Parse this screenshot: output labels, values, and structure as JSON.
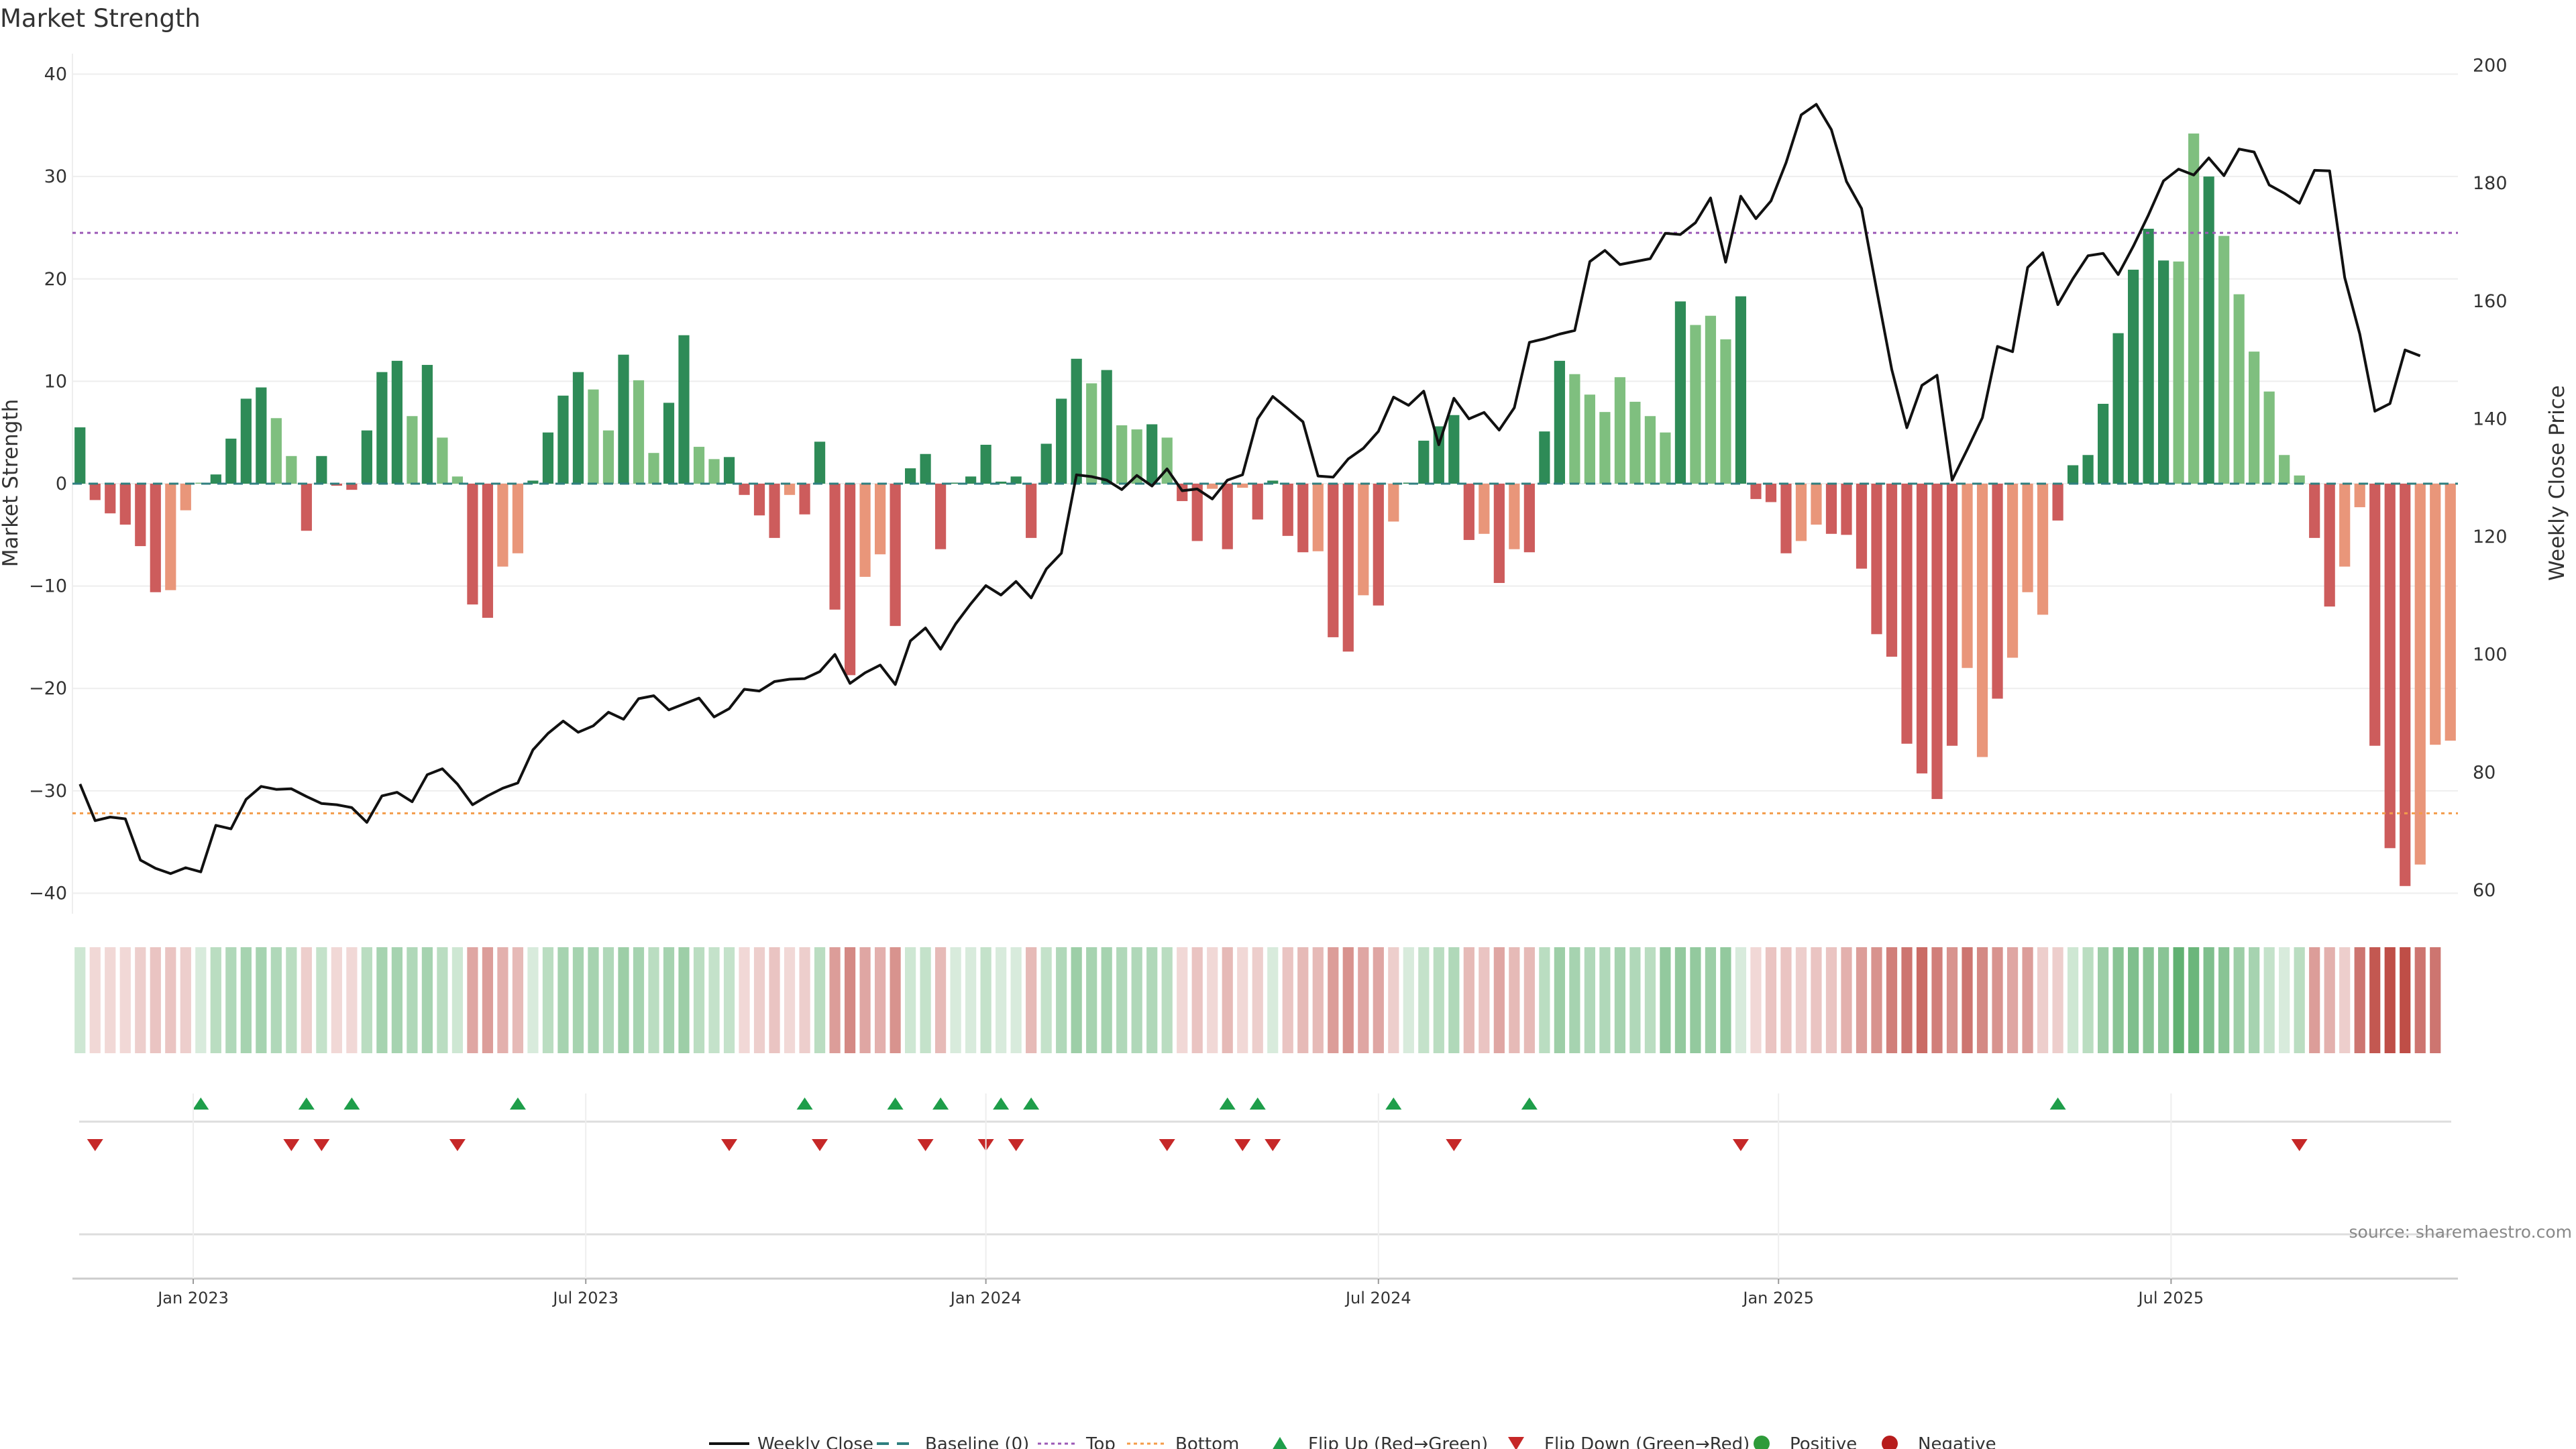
{
  "title": "Market Strength",
  "source": "source: sharemaestro.com",
  "colors": {
    "strong_green": "#2e8b57",
    "light_green": "#7fbf7f",
    "strong_red": "#cd5c5c",
    "light_red": "#e9967a",
    "price_line": "#111111",
    "baseline": "#2f7f7f",
    "top": "#9b59b6",
    "bottom": "#f39c4a",
    "flip_up": "#1e9e4a",
    "flip_down": "#c62828",
    "grid": "#eeeeee"
  },
  "legend": [
    {
      "key": "line",
      "label": "Weekly Close"
    },
    {
      "key": "dash",
      "label": "Baseline (0)"
    },
    {
      "key": "top",
      "label": "Top"
    },
    {
      "key": "bottom",
      "label": "Bottom"
    },
    {
      "key": "up",
      "label": "Flip Up (Red→Green)"
    },
    {
      "key": "down",
      "label": "Flip Down (Green→Red)"
    },
    {
      "key": "pos",
      "label": "Positive"
    },
    {
      "key": "neg",
      "label": "Negative"
    }
  ],
  "chart_data": {
    "type": "bar",
    "title": "Market Strength",
    "ylabel": "Market Strength",
    "y2label": "Weekly Close Price",
    "ylim": [
      -42,
      42
    ],
    "y2lim": [
      56,
      202
    ],
    "yticks": [
      40,
      30,
      20,
      10,
      0,
      -10,
      -20,
      -30,
      -40
    ],
    "y2ticks": [
      200,
      180,
      160,
      140,
      120,
      100,
      80,
      60
    ],
    "xticks": [
      "Jan 2023",
      "Jul 2023",
      "Jan 2024",
      "Jul 2024",
      "Jan 2025",
      "Jul 2025"
    ],
    "top_line": 24.5,
    "bottom_line": -32.2,
    "baseline": 0,
    "weeks": 158,
    "tick_week_index": [
      8,
      34,
      60.5,
      86.5,
      113,
      139
    ],
    "strength": [
      5.5,
      -1.6,
      -2.9,
      -4,
      -6.1,
      -10.6,
      -10.4,
      -2.6,
      0.1,
      0.9,
      4.4,
      8.3,
      9.4,
      6.4,
      2.7,
      -4.6,
      2.7,
      -0.2,
      -0.6,
      5.2,
      10.9,
      12,
      6.6,
      11.6,
      4.5,
      0.7,
      -11.8,
      -13.1,
      -8.1,
      -6.8,
      0.3,
      5,
      8.6,
      10.9,
      9.2,
      5.2,
      12.6,
      10.1,
      3,
      7.9,
      14.5,
      3.6,
      2.4,
      2.6,
      -1.1,
      -3.1,
      -5.3,
      -1.1,
      -3,
      4.1,
      -12.3,
      -18.7,
      -9.1,
      -6.9,
      -13.9,
      1.5,
      2.9,
      -6.4,
      0.1,
      0.7,
      3.8,
      0.2,
      0.7,
      -5.3,
      3.9,
      8.3,
      12.2,
      9.8,
      11.1,
      5.7,
      5.3,
      5.8,
      4.5,
      -1.7,
      -5.6,
      -0.5,
      -6.4,
      -0.4,
      -3.5,
      0.3,
      -5.1,
      -6.7,
      -6.6,
      -15,
      -16.4,
      -10.9,
      -11.9,
      -3.7,
      0.1,
      4.2,
      5.6,
      6.7,
      -5.5,
      -4.9,
      -9.7,
      -6.4,
      -6.7,
      5.1,
      12,
      10.7,
      8.7,
      7,
      10.4,
      8,
      6.6,
      5,
      17.8,
      15.5,
      16.4,
      14.1,
      18.3,
      -1.5,
      -1.8,
      -6.8,
      -5.6,
      -4,
      -4.9,
      -5,
      -8.3,
      -14.7,
      -16.9,
      -25.4,
      -28.3,
      -30.8,
      -25.6,
      -18,
      -26.7,
      -21,
      -17,
      -10.6,
      -12.8,
      -3.6,
      1.8,
      2.8,
      7.8,
      14.7,
      20.9,
      24.9,
      21.8,
      21.7,
      34.2,
      30,
      24.2,
      18.5,
      12.9,
      9,
      2.8,
      0.8,
      -5.3,
      -12,
      -8.1,
      -2.3,
      -25.6,
      -35.6,
      -39.3,
      -37.2,
      -25.5,
      -25.1
    ],
    "strength_shade": [
      "s",
      "s",
      "s",
      "s",
      "s",
      "s",
      "l",
      "l",
      "l",
      "s",
      "s",
      "s",
      "s",
      "l",
      "l",
      "s",
      "s",
      "s",
      "s",
      "s",
      "s",
      "s",
      "l",
      "s",
      "l",
      "l",
      "s",
      "s",
      "l",
      "l",
      "s",
      "s",
      "s",
      "s",
      "l",
      "l",
      "s",
      "l",
      "l",
      "s",
      "s",
      "l",
      "l",
      "s",
      "s",
      "s",
      "s",
      "l",
      "s",
      "s",
      "s",
      "s",
      "l",
      "l",
      "s",
      "s",
      "s",
      "s",
      "s",
      "s",
      "s",
      "s",
      "s",
      "s",
      "s",
      "s",
      "s",
      "l",
      "s",
      "l",
      "l",
      "s",
      "l",
      "s",
      "s",
      "l",
      "s",
      "l",
      "s",
      "s",
      "s",
      "s",
      "l",
      "s",
      "s",
      "l",
      "s",
      "l",
      "s",
      "s",
      "s",
      "s",
      "s",
      "l",
      "s",
      "l",
      "s",
      "s",
      "s",
      "l",
      "l",
      "l",
      "l",
      "l",
      "l",
      "l",
      "s",
      "l",
      "l",
      "l",
      "s",
      "s",
      "s",
      "s",
      "l",
      "l",
      "s",
      "s",
      "s",
      "s",
      "s",
      "s",
      "s",
      "s",
      "s",
      "l",
      "l",
      "s",
      "l",
      "l",
      "l",
      "s",
      "s",
      "s",
      "s",
      "s",
      "s",
      "s",
      "s",
      "l",
      "l",
      "s",
      "l",
      "l",
      "l",
      "l",
      "l",
      "l",
      "s",
      "s",
      "l",
      "l",
      "s",
      "s",
      "s",
      "l",
      "l",
      "l"
    ],
    "weekly_close": [
      78,
      71.8,
      72.4,
      72.1,
      65.1,
      63.7,
      62.8,
      63.8,
      63.1,
      71,
      70.4,
      75.4,
      77.6,
      77.1,
      77.2,
      75.9,
      74.7,
      74.5,
      74,
      71.5,
      76,
      76.6,
      75,
      79.6,
      80.6,
      78,
      74.5,
      76,
      77.3,
      78.2,
      83.8,
      86.6,
      88.7,
      86.8,
      87.9,
      90.2,
      89,
      92.5,
      93,
      90.6,
      91.6,
      92.6,
      89.4,
      90.8,
      94.1,
      93.8,
      95.4,
      95.8,
      95.9,
      97.1,
      100,
      95.1,
      96.9,
      98.2,
      94.9,
      102.3,
      104.5,
      100.9,
      105.2,
      108.6,
      111.7,
      110.1,
      112.4,
      109.6,
      114.5,
      117.2,
      130.5,
      130.2,
      129.6,
      128,
      130.4,
      128.6,
      131.5,
      127.8,
      128.1,
      126.4,
      129.6,
      130.5,
      140,
      143.8,
      141.7,
      139.5,
      130.3,
      130.1,
      133.2,
      135,
      137.9,
      143.7,
      142.3,
      144.7,
      135.6,
      143.5,
      140,
      141.1,
      138.1,
      141.9,
      153,
      153.6,
      154.4,
      155,
      166.7,
      168.6,
      166.2,
      166.7,
      167.2,
      171.5,
      171.3,
      173.3,
      177.5,
      166.6,
      177.8,
      174,
      177,
      183.5,
      191.6,
      193.4,
      189.1,
      180.3,
      175.7,
      161.9,
      148.4,
      138.5,
      145.7,
      147.4,
      129.6,
      134.8,
      140.2,
      152.3,
      151.4,
      165.7,
      168.2,
      159.4,
      163.8,
      167.7,
      168.1,
      164.5,
      169.3,
      174.6,
      180.4,
      182.4,
      181.4,
      184.3,
      181.3,
      185.8,
      185.3,
      179.7,
      178.3,
      176.6,
      182.2,
      182.1,
      164,
      154.4,
      141.3,
      142.6,
      151.7,
      150.7
    ],
    "heat_intensity": [
      0.25,
      0.2,
      0.2,
      0.2,
      0.25,
      0.3,
      0.3,
      0.25,
      0.2,
      0.35,
      0.4,
      0.45,
      0.45,
      0.4,
      0.35,
      0.25,
      0.3,
      0.2,
      0.2,
      0.35,
      0.45,
      0.45,
      0.4,
      0.45,
      0.35,
      0.25,
      0.45,
      0.5,
      0.4,
      0.35,
      0.2,
      0.35,
      0.45,
      0.45,
      0.45,
      0.4,
      0.5,
      0.45,
      0.35,
      0.45,
      0.5,
      0.35,
      0.3,
      0.3,
      0.2,
      0.25,
      0.3,
      0.2,
      0.25,
      0.35,
      0.5,
      0.6,
      0.45,
      0.4,
      0.55,
      0.25,
      0.3,
      0.35,
      0.2,
      0.2,
      0.3,
      0.2,
      0.2,
      0.35,
      0.3,
      0.4,
      0.5,
      0.45,
      0.45,
      0.4,
      0.4,
      0.4,
      0.35,
      0.2,
      0.3,
      0.2,
      0.35,
      0.2,
      0.25,
      0.2,
      0.3,
      0.35,
      0.35,
      0.5,
      0.55,
      0.45,
      0.45,
      0.25,
      0.2,
      0.3,
      0.35,
      0.4,
      0.35,
      0.3,
      0.45,
      0.35,
      0.35,
      0.35,
      0.5,
      0.45,
      0.4,
      0.4,
      0.45,
      0.4,
      0.35,
      0.55,
      0.55,
      0.55,
      0.5,
      0.55,
      0.2,
      0.2,
      0.3,
      0.3,
      0.25,
      0.3,
      0.3,
      0.4,
      0.5,
      0.55,
      0.65,
      0.7,
      0.75,
      0.65,
      0.55,
      0.7,
      0.6,
      0.55,
      0.45,
      0.5,
      0.25,
      0.25,
      0.25,
      0.35,
      0.5,
      0.6,
      0.65,
      0.6,
      0.6,
      0.8,
      0.75,
      0.65,
      0.6,
      0.5,
      0.45,
      0.3,
      0.2,
      0.35,
      0.5,
      0.4,
      0.25,
      0.7,
      0.85,
      0.9,
      0.9,
      0.7,
      0.7
    ],
    "flip_up_weeks": [
      8,
      15,
      18,
      29,
      48,
      54,
      57,
      61,
      63,
      76,
      78,
      87,
      96,
      131
    ],
    "flip_down_weeks": [
      1,
      14,
      16,
      25,
      43,
      49,
      56,
      60,
      62,
      72,
      77,
      79,
      91,
      110,
      147
    ]
  }
}
